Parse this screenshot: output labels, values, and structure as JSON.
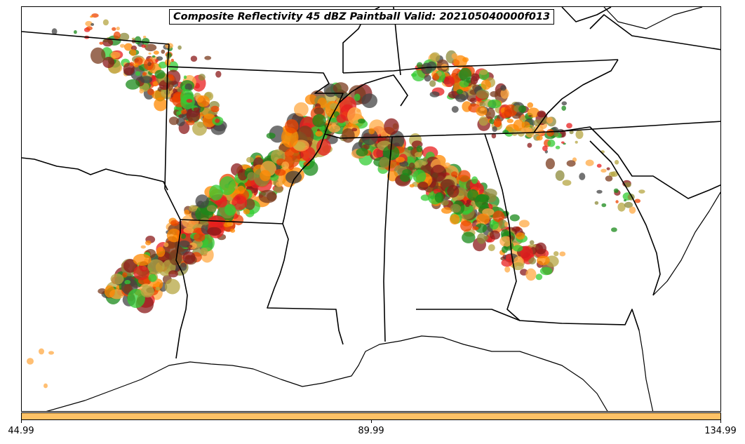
{
  "title": "Composite Reflectivity 45 dBZ Paintball Valid: 202105040000f013",
  "colorbar": {
    "color": "#ffc266",
    "ticks": [
      "44.99",
      "89.99",
      "134.99"
    ]
  },
  "palette": {
    "green": "#33cc33",
    "darkgreen": "#1a8a1a",
    "red": "#e81f1f",
    "orange": "#ff8800",
    "redorange": "#ee4400",
    "olive": "#8c8a3a",
    "khaki": "#b5a642",
    "darkred": "#8b1a1a",
    "gray": "#444444",
    "brown": "#7a3b1e",
    "lightorange": "#ffaa44"
  }
}
